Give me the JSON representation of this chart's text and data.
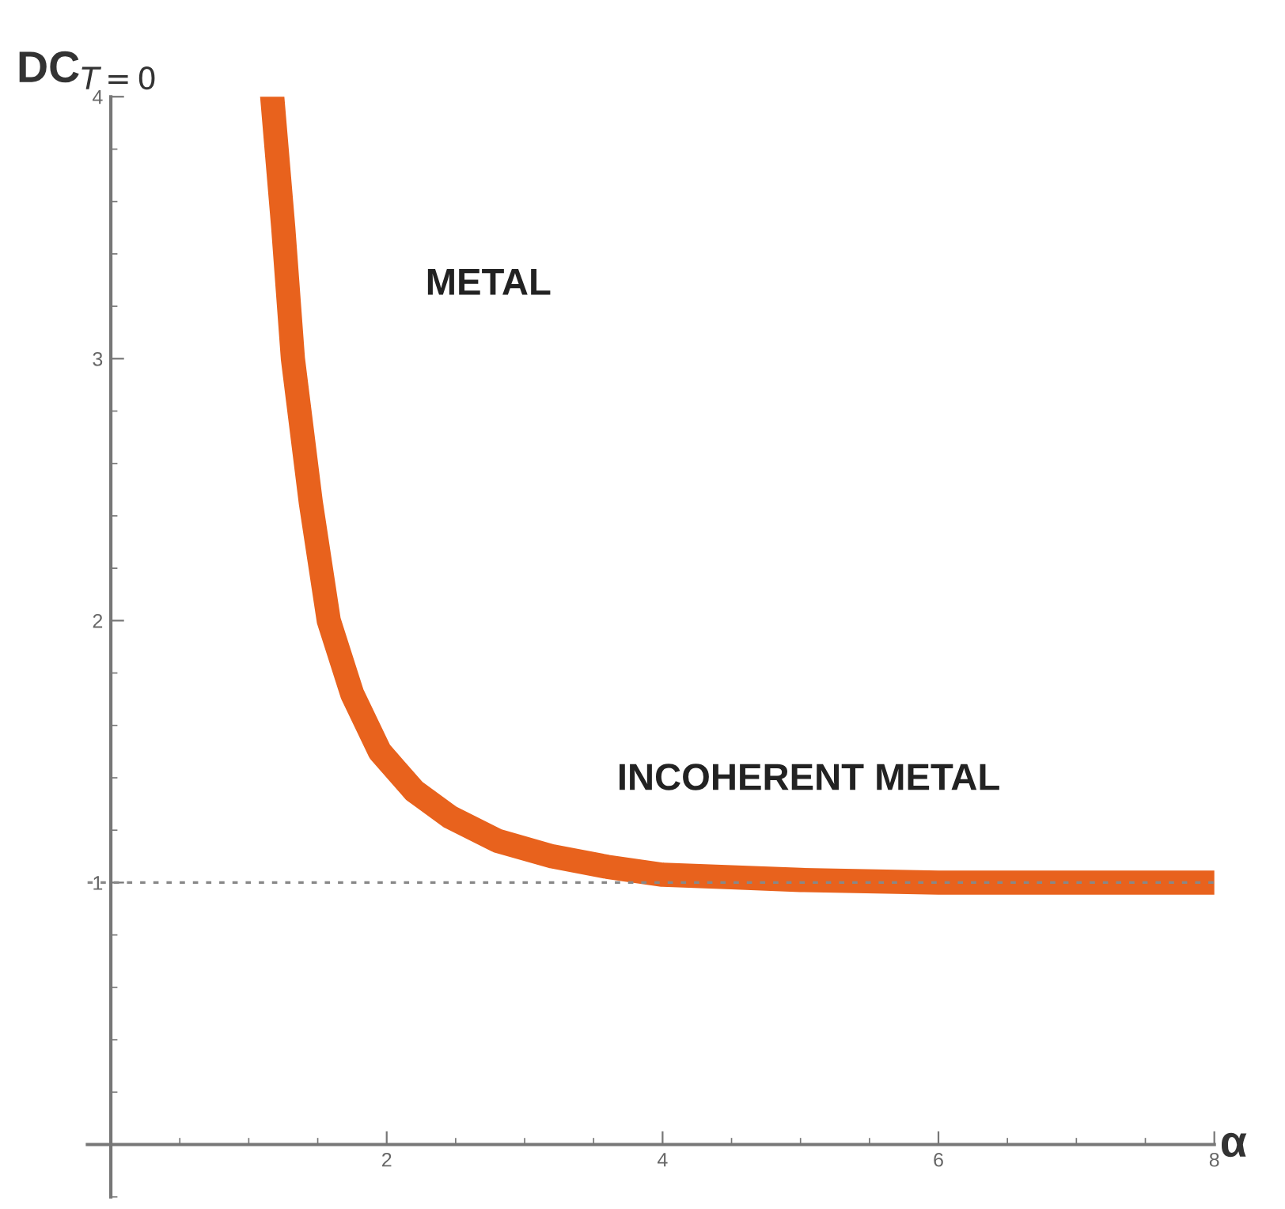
{
  "chart_data": {
    "type": "line",
    "xlabel": "α",
    "ylabel": "DC$_{T=0}$",
    "series": [
      {
        "x": [
          1.17,
          1.25,
          1.32,
          1.45,
          1.58,
          1.75,
          1.95,
          2.2,
          2.46,
          2.8,
          3.2,
          3.6,
          4.0,
          4.5,
          5.0,
          6.0,
          7.0,
          8.0
        ],
        "values": [
          4.0,
          3.5,
          3.0,
          2.45,
          2.0,
          1.72,
          1.5,
          1.35,
          1.25,
          1.16,
          1.1,
          1.06,
          1.03,
          1.02,
          1.01,
          1.0,
          1.0,
          1.0
        ],
        "color": "#e8621d"
      }
    ],
    "xlim": [
      -0.17,
      8.0
    ],
    "ylim": [
      -0.2,
      4.0
    ],
    "xticks": [
      2,
      4,
      6,
      8
    ],
    "yticks": [
      1,
      2,
      3,
      4
    ],
    "ref_lines": [
      {
        "axis": "y",
        "value": 1,
        "color": "#888888",
        "line_style": "dashed"
      }
    ],
    "annotations": [
      "METAL",
      "INCOHERENT METAL"
    ],
    "grid": false,
    "legend": false
  }
}
